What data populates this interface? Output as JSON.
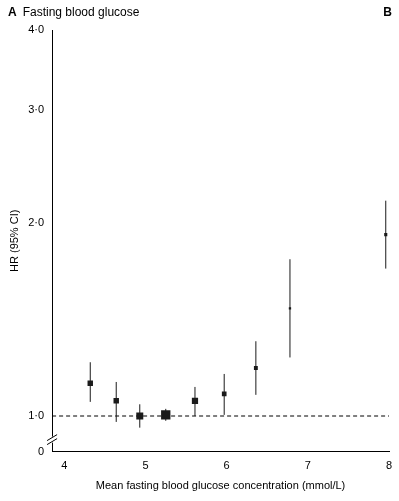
{
  "chart_data": {
    "type": "scatter",
    "title": "Fasting blood glucose",
    "annotations": [
      {
        "text": "A"
      },
      {
        "text": "B"
      },
      {
        "text": "0"
      }
    ],
    "x_label": "Mean fasting blood glucose concentration (mmol/L)",
    "y_label": "HR (95% CI)",
    "x": [
      4.32,
      4.64,
      4.93,
      5.25,
      5.61,
      5.97,
      6.36,
      6.78,
      7.96
    ],
    "values": [
      1.125,
      1.056,
      1.0,
      1.004,
      1.056,
      1.083,
      1.188,
      1.472,
      1.918
    ],
    "ci_lower": [
      1.052,
      0.979,
      0.959,
      0.983,
      1.0,
      1.004,
      1.079,
      1.234,
      1.698
    ],
    "ci_upper": [
      1.213,
      1.13,
      1.043,
      1.026,
      1.11,
      1.163,
      1.308,
      1.756,
      2.167
    ],
    "weights": [
      7,
      7,
      9,
      12,
      8,
      6,
      5,
      3,
      4
    ],
    "marker": "square",
    "color": "#1a1a1a",
    "log": "y",
    "grid": false,
    "legend": "none",
    "xlim": [
      3.85,
      8
    ],
    "xticks": [
      4,
      5,
      6,
      7,
      8
    ],
    "ylim": [
      0.88,
      4
    ],
    "yticks": [
      {
        "value": 1,
        "label": "1·0"
      },
      {
        "value": 2,
        "label": "2·0"
      },
      {
        "value": 3,
        "label": "3·0"
      },
      {
        "value": 4,
        "label": "4·0"
      }
    ],
    "reference_line": {
      "value": 1,
      "line_style": "dashed"
    }
  }
}
